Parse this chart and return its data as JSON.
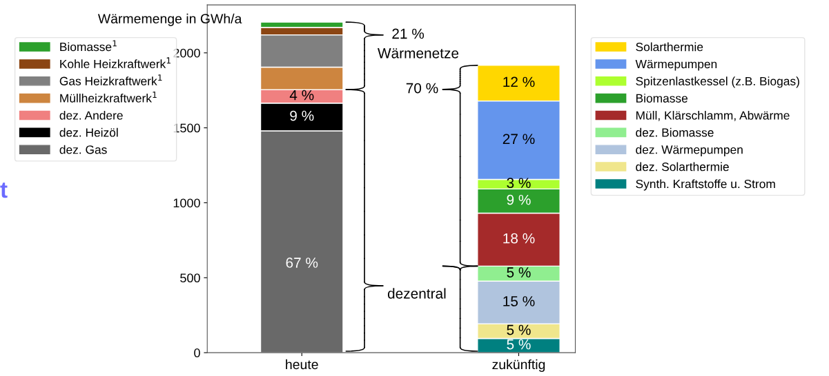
{
  "chart_data": {
    "type": "bar",
    "stacked": true,
    "ylabel": "Wärmemenge in GWh/a",
    "categories": [
      "heute",
      "zukünftig"
    ],
    "ylim": [
      0,
      2320
    ],
    "yticks": [
      0,
      500,
      1000,
      1500,
      2000
    ],
    "grid": false,
    "legend": "left",
    "series": [
      {
        "name": "dez. Gas",
        "color": "#696969",
        "values": [
          1480,
          null
        ]
      },
      {
        "name": "dez. Heizöl",
        "color": "#000000",
        "values": [
          185,
          null
        ]
      },
      {
        "name": "dez. Andere",
        "color": "#f08080",
        "values": [
          90,
          null
        ]
      },
      {
        "name": "Müllheizkraftwerk$^{1}$",
        "color": "#cd853f",
        "values": [
          150,
          null
        ]
      },
      {
        "name": "Gas Heizkraftwerk$^{1}$",
        "color": "#808080",
        "values": [
          215,
          null
        ]
      },
      {
        "name": "Kohle Heizkraftwerk$^{1}$",
        "color": "#8b4513",
        "values": [
          50,
          null
        ]
      },
      {
        "name": "Biomasse$^{1}$",
        "color": "#2ca02c",
        "values": [
          35,
          null
        ]
      },
      {
        "name": "Synth. Kraftstoffe u. Strom",
        "color": "#008080",
        "values": [
          null,
          95
        ]
      },
      {
        "name": "dez. Solarthermie",
        "color": "#f0e68c",
        "values": [
          null,
          98
        ]
      },
      {
        "name": "dez. Wärmepumpen",
        "color": "#b0c4de",
        "values": [
          null,
          284
        ]
      },
      {
        "name": "dez. Biomasse",
        "color": "#90ee90",
        "values": [
          null,
          101
        ]
      },
      {
        "name": "Müll, Klärschlamm, Abwärme",
        "color": "#a52a2a",
        "values": [
          null,
          353
        ]
      },
      {
        "name": "Biomasse",
        "color": "#2ca02c",
        "values": [
          null,
          161
        ]
      },
      {
        "name": "Spitzenlastkessel (z.B. Biogas)",
        "color": "#adff2f",
        "values": [
          null,
          64
        ]
      },
      {
        "name": "Wärmepumpen",
        "color": "#6495ed",
        "values": [
          null,
          523
        ]
      },
      {
        "name": "Solarthermie",
        "color": "#ffd700",
        "values": [
          null,
          238
        ]
      }
    ],
    "annotations": [
      "21 %",
      "Wärmenetze",
      "70 %",
      "dezentral",
      "t",
      "67 %",
      "9 %",
      "4 %",
      "5 %",
      "5 %",
      "15 %",
      "5 %",
      "18 %",
      "9 %",
      "3 %",
      "27 %",
      "12 %"
    ]
  }
}
